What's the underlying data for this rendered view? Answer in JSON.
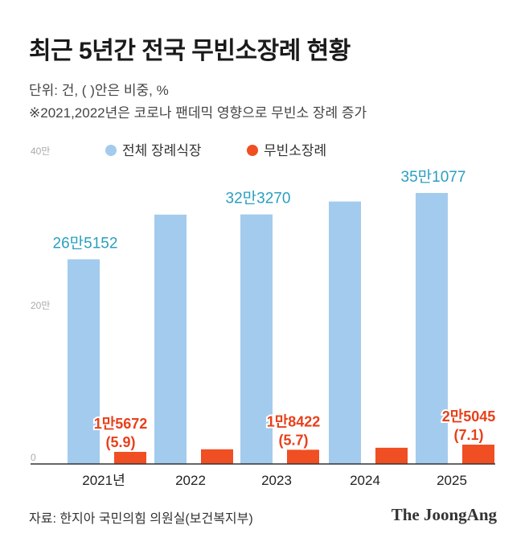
{
  "title": "최근 5년간 전국 무빈소장례 현황",
  "notes": [
    "단위: 건, ( )안은 비중, %",
    "※2021,2022년은 코로나 팬데믹 영향으로 무빈소 장례 증가"
  ],
  "source": "자료: 한지아 국민의힘 의원실(보건복지부)",
  "brand": "The JoongAng",
  "chart_data": {
    "type": "bar",
    "categories": [
      "2021년",
      "2022",
      "2023",
      "2024",
      "2025"
    ],
    "y_ticks": [
      {
        "value": 0,
        "label": "0"
      },
      {
        "value": 200000,
        "label": "20만"
      },
      {
        "value": 400000,
        "label": "40만"
      }
    ],
    "ylim": [
      0,
      400000
    ],
    "legend_position": "top",
    "series": [
      {
        "name": "전체 장례식장",
        "color": "#a3cbed",
        "label_color": "#2a9fc0",
        "values": [
          265152,
          323000,
          323270,
          340000,
          351077
        ],
        "labels": [
          "26만5152",
          "",
          "32만3270",
          "",
          "35만1077"
        ]
      },
      {
        "name": "무빈소장례",
        "color": "#f04e23",
        "label_color": "#e8401a",
        "values": [
          15672,
          19000,
          18422,
          21000,
          25045
        ],
        "labels": [
          "1만5672",
          "",
          "1만8422",
          "",
          "2만5045"
        ],
        "sublabels": [
          "(5.9)",
          "",
          "(5.7)",
          "",
          "(7.1)"
        ]
      }
    ]
  }
}
